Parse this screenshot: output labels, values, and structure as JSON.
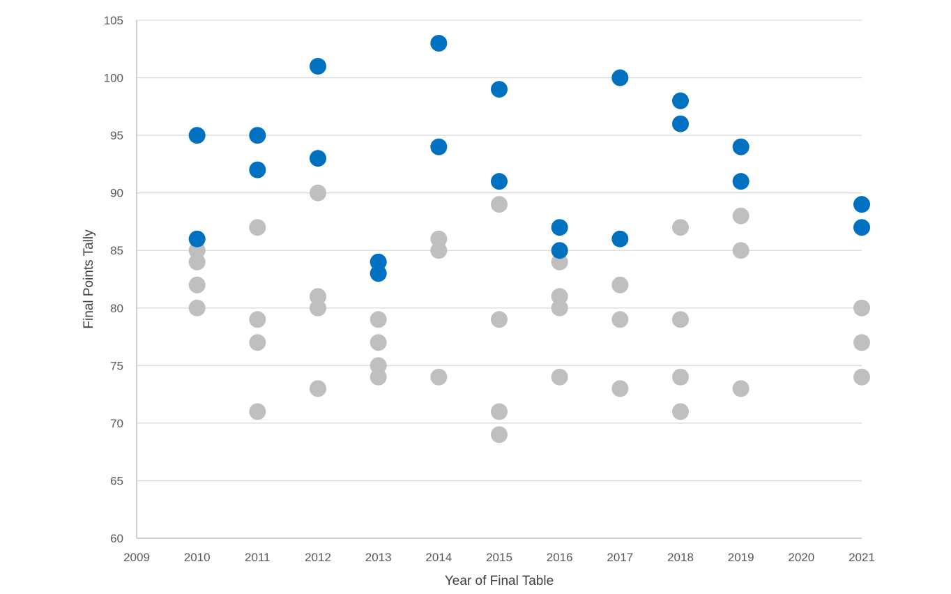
{
  "chart_data": {
    "type": "scatter",
    "title": "",
    "xlabel": "Year of Final Table",
    "ylabel": "Final Points Tally",
    "xlim": [
      2009,
      2021
    ],
    "ylim": [
      60,
      105
    ],
    "x_ticks": [
      "2009",
      "2010",
      "2011",
      "2012",
      "2013",
      "2014",
      "2015",
      "2016",
      "2017",
      "2018",
      "2019",
      "2020",
      "2021"
    ],
    "y_ticks": [
      "60",
      "65",
      "70",
      "75",
      "80",
      "85",
      "90",
      "95",
      "100",
      "105"
    ],
    "grid": "horizontal",
    "legend": "none",
    "series": [
      {
        "color": "#0070C0",
        "points": [
          [
            2010,
            95
          ],
          [
            2010,
            86
          ],
          [
            2011,
            95
          ],
          [
            2011,
            92
          ],
          [
            2012,
            101
          ],
          [
            2012,
            93
          ],
          [
            2013,
            84
          ],
          [
            2013,
            83
          ],
          [
            2014,
            103
          ],
          [
            2014,
            94
          ],
          [
            2015,
            99
          ],
          [
            2015,
            91
          ],
          [
            2016,
            87
          ],
          [
            2016,
            85
          ],
          [
            2017,
            100
          ],
          [
            2017,
            86
          ],
          [
            2018,
            98
          ],
          [
            2018,
            96
          ],
          [
            2019,
            94
          ],
          [
            2019,
            91
          ],
          [
            2021,
            89
          ],
          [
            2021,
            87
          ]
        ]
      },
      {
        "color": "#BFBFBF",
        "points": [
          [
            2010,
            85
          ],
          [
            2010,
            84
          ],
          [
            2010,
            82
          ],
          [
            2010,
            80
          ],
          [
            2011,
            87
          ],
          [
            2011,
            79
          ],
          [
            2011,
            77
          ],
          [
            2011,
            71
          ],
          [
            2012,
            90
          ],
          [
            2012,
            81
          ],
          [
            2012,
            80
          ],
          [
            2012,
            73
          ],
          [
            2013,
            79
          ],
          [
            2013,
            77
          ],
          [
            2013,
            75
          ],
          [
            2013,
            74
          ],
          [
            2014,
            86
          ],
          [
            2014,
            85
          ],
          [
            2014,
            74
          ],
          [
            2015,
            89
          ],
          [
            2015,
            79
          ],
          [
            2015,
            71
          ],
          [
            2015,
            69
          ],
          [
            2016,
            84
          ],
          [
            2016,
            81
          ],
          [
            2016,
            80
          ],
          [
            2016,
            74
          ],
          [
            2017,
            82
          ],
          [
            2017,
            79
          ],
          [
            2017,
            73
          ],
          [
            2018,
            87
          ],
          [
            2018,
            79
          ],
          [
            2018,
            74
          ],
          [
            2018,
            71
          ],
          [
            2019,
            88
          ],
          [
            2019,
            85
          ],
          [
            2019,
            73
          ],
          [
            2021,
            80
          ],
          [
            2021,
            77
          ],
          [
            2021,
            74
          ]
        ]
      }
    ]
  }
}
